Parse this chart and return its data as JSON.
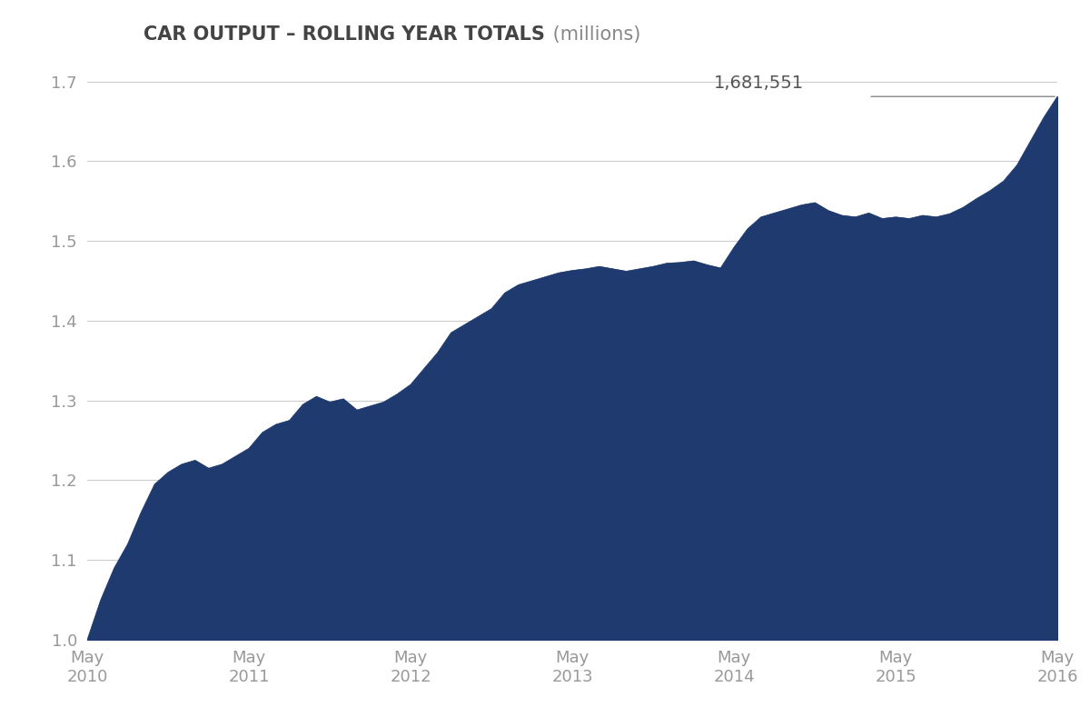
{
  "title_bold": "CAR OUTPUT – ROLLING YEAR TOTALS",
  "title_suffix": " (millions)",
  "annotation_label": "1,681,551",
  "fill_color": "#1f3a6e",
  "background_color": "#ffffff",
  "grid_color": "#cccccc",
  "text_color": "#999999",
  "title_color_bold": "#444444",
  "title_color_normal": "#888888",
  "ylim": [
    1.0,
    1.72
  ],
  "yticks": [
    1.0,
    1.1,
    1.2,
    1.3,
    1.4,
    1.5,
    1.6,
    1.7
  ],
  "xtick_labels": [
    "May\n2010",
    "May\n2011",
    "May\n2012",
    "May\n2013",
    "May\n2014",
    "May\n2015",
    "May\n2016"
  ],
  "x_positions": [
    0,
    12,
    24,
    36,
    48,
    60,
    72
  ],
  "data_x": [
    0,
    1,
    2,
    3,
    4,
    5,
    6,
    7,
    8,
    9,
    10,
    11,
    12,
    13,
    14,
    15,
    16,
    17,
    18,
    19,
    20,
    21,
    22,
    23,
    24,
    25,
    26,
    27,
    28,
    29,
    30,
    31,
    32,
    33,
    34,
    35,
    36,
    37,
    38,
    39,
    40,
    41,
    42,
    43,
    44,
    45,
    46,
    47,
    48,
    49,
    50,
    51,
    52,
    53,
    54,
    55,
    56,
    57,
    58,
    59,
    60,
    61,
    62,
    63,
    64,
    65,
    66,
    67,
    68,
    69,
    70,
    71,
    72
  ],
  "data_y": [
    1.0,
    1.05,
    1.09,
    1.12,
    1.16,
    1.195,
    1.21,
    1.22,
    1.225,
    1.215,
    1.22,
    1.23,
    1.24,
    1.26,
    1.27,
    1.275,
    1.295,
    1.305,
    1.298,
    1.302,
    1.288,
    1.293,
    1.298,
    1.308,
    1.32,
    1.34,
    1.36,
    1.385,
    1.395,
    1.405,
    1.415,
    1.435,
    1.445,
    1.45,
    1.455,
    1.46,
    1.463,
    1.465,
    1.468,
    1.465,
    1.462,
    1.465,
    1.468,
    1.472,
    1.473,
    1.475,
    1.47,
    1.466,
    1.492,
    1.515,
    1.53,
    1.535,
    1.54,
    1.545,
    1.548,
    1.538,
    1.532,
    1.53,
    1.535,
    1.528,
    1.53,
    1.528,
    1.532,
    1.53,
    1.534,
    1.542,
    1.553,
    1.563,
    1.575,
    1.595,
    1.625,
    1.655,
    1.681
  ]
}
